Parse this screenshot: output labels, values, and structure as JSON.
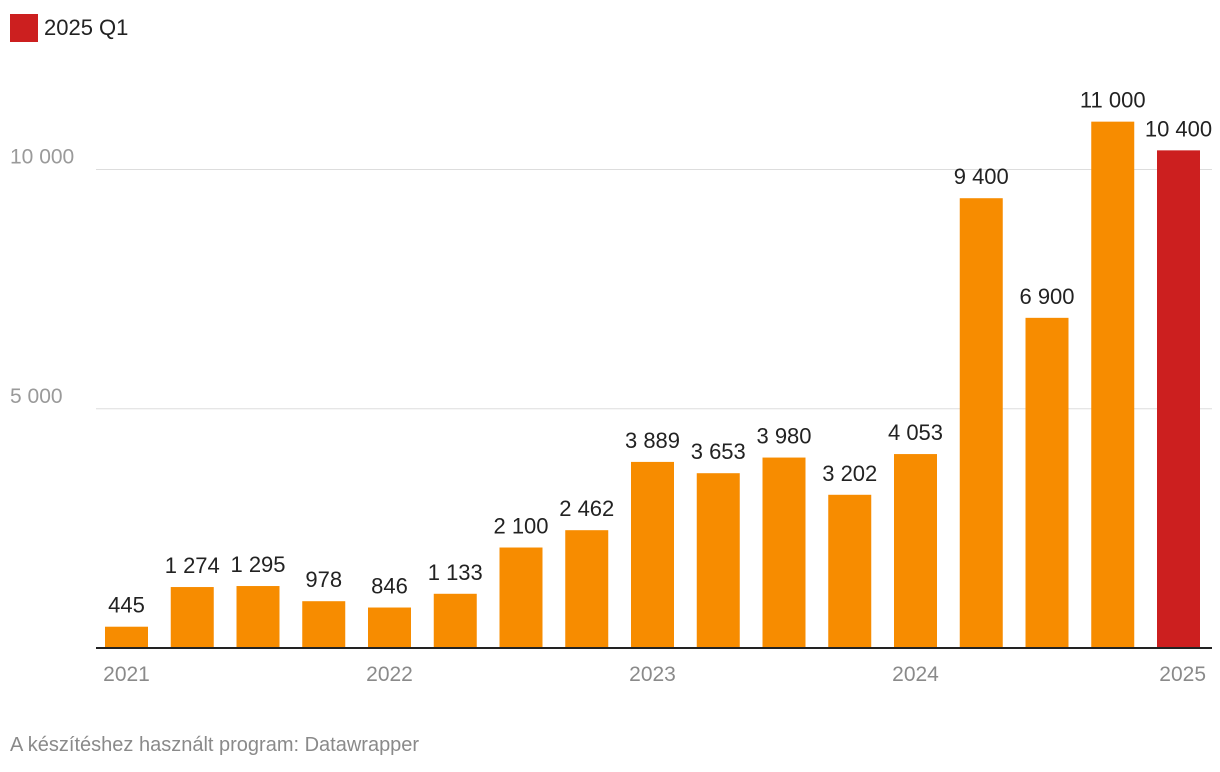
{
  "legend": {
    "label": "2025 Q1",
    "color": "#cc1f1f"
  },
  "footer": {
    "credit": "A készítéshez használt program: Datawrapper"
  },
  "chart_data": {
    "type": "bar",
    "values": [
      445,
      1274,
      1295,
      978,
      846,
      1133,
      2100,
      2462,
      3889,
      3653,
      3980,
      3202,
      4053,
      9400,
      6900,
      11000,
      10400
    ],
    "value_labels": [
      "445",
      "1 274",
      "1 295",
      "978",
      "846",
      "1 133",
      "2 100",
      "2 462",
      "3 889",
      "3 653",
      "3 980",
      "3 202",
      "4 053",
      "9 400",
      "6 900",
      "11 000",
      "10 400"
    ],
    "highlight_index": 16,
    "bar_color": "#f78c00",
    "highlight_color": "#cc1f1f",
    "x_ticks": [
      {
        "label": "2021",
        "index": 0
      },
      {
        "label": "2022",
        "index": 4
      },
      {
        "label": "2023",
        "index": 8
      },
      {
        "label": "2024",
        "index": 12
      },
      {
        "label": "2025",
        "index": 16
      }
    ],
    "y_ticks": [
      {
        "value": 5000,
        "label": "5 000"
      },
      {
        "value": 10000,
        "label": "10 000"
      }
    ],
    "ylim": [
      0,
      11500
    ],
    "grid": true
  }
}
